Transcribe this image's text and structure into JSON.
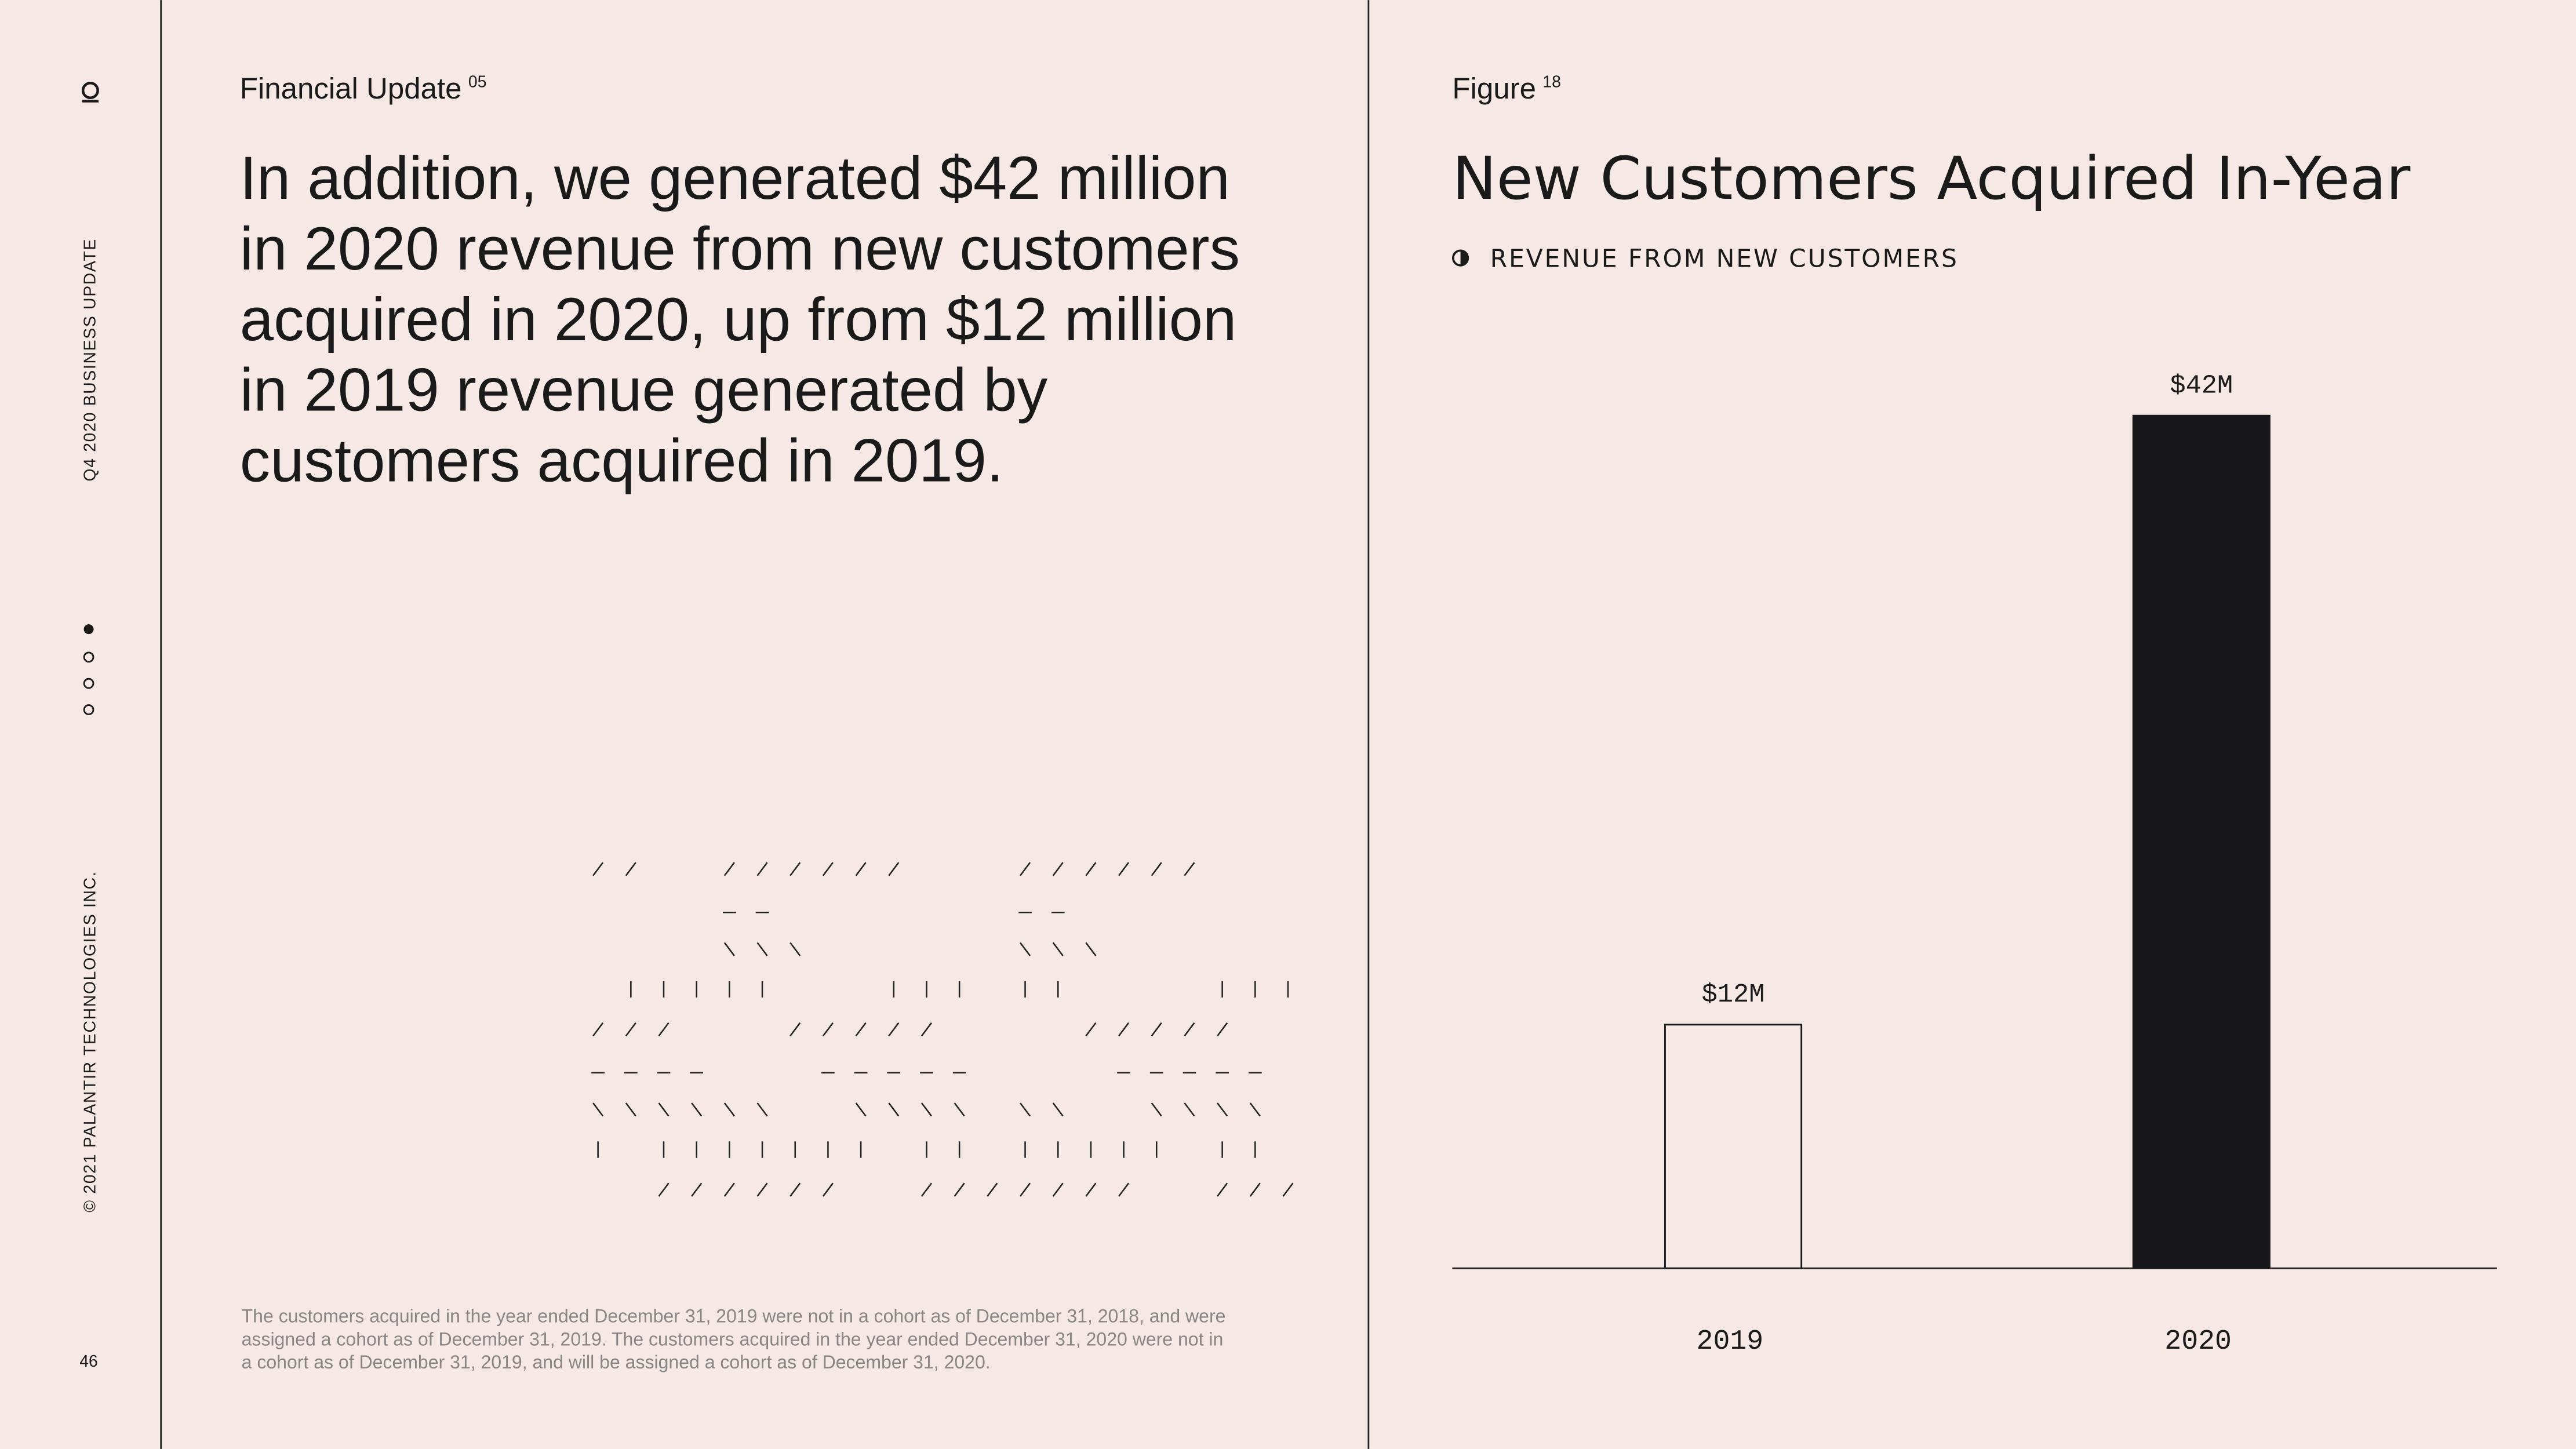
{
  "sidebar": {
    "slide_title": "Q4 2020 BUSINESS UPDATE",
    "copyright": "© 2021 PALANTIR TECHNOLOGIES INC.",
    "page_number": "46"
  },
  "main": {
    "section": "Financial Update",
    "section_number": "05",
    "headline_lines": [
      "In addition, we generated $42 million",
      "in 2020 revenue from new customers",
      "acquired in 2020, up from $12 million",
      "in 2019 revenue generated by",
      "customers acquired in 2019."
    ],
    "footnote_lines": [
      "The customers acquired in the year ended December 31, 2019 were not in a cohort as of December 31, 2018, and were",
      "assigned a cohort as of December 31, 2019. The customers acquired in the year ended December 31, 2020 were not in",
      "a cohort as of December 31, 2019, and will be assigned a cohort as of December 31, 2020."
    ]
  },
  "figure": {
    "label": "Figure",
    "number": "18"
  },
  "chart_data": {
    "type": "bar",
    "title": "New Customers Acquired In-Year",
    "categories": [
      "2019",
      "2020"
    ],
    "series": [
      {
        "name": "REVENUE FROM NEW CUSTOMERS",
        "values": [
          12,
          42
        ],
        "value_labels": [
          "$12M",
          "$42M"
        ],
        "colors": [
          "#f5e8e5",
          "#18181a"
        ]
      }
    ]
  }
}
